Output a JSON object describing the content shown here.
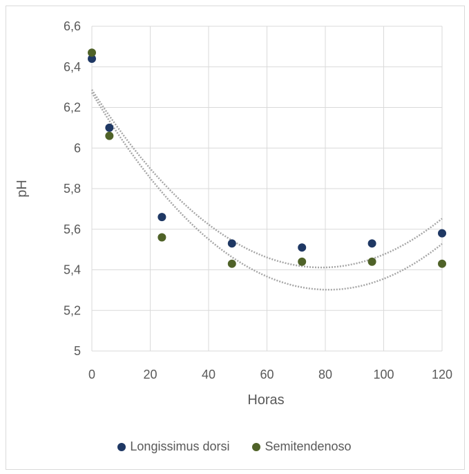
{
  "chart_data": {
    "type": "scatter",
    "title": "",
    "xlabel": "Horas",
    "ylabel": "pH",
    "xlim": [
      0,
      120
    ],
    "ylim": [
      5,
      6.6
    ],
    "x_ticks": [
      "0",
      "20",
      "40",
      "60",
      "80",
      "100",
      "120"
    ],
    "y_ticks": [
      "5",
      "5,2",
      "5,4",
      "5,6",
      "5,8",
      "6",
      "6,2",
      "6,4",
      "6,6"
    ],
    "grid": true,
    "legend_position": "bottom",
    "trendline": "polynomial",
    "series": [
      {
        "name": "Longissimus dorsi",
        "color": "#1f3864",
        "x": [
          0,
          6,
          24,
          48,
          72,
          96,
          120
        ],
        "y": [
          6.44,
          6.1,
          5.66,
          5.53,
          5.51,
          5.53,
          5.58
        ]
      },
      {
        "name": "Semitendenoso",
        "color": "#4f6228",
        "x": [
          0,
          6,
          24,
          48,
          72,
          96,
          120
        ],
        "y": [
          6.47,
          6.06,
          5.56,
          5.43,
          5.44,
          5.44,
          5.43
        ]
      }
    ]
  }
}
